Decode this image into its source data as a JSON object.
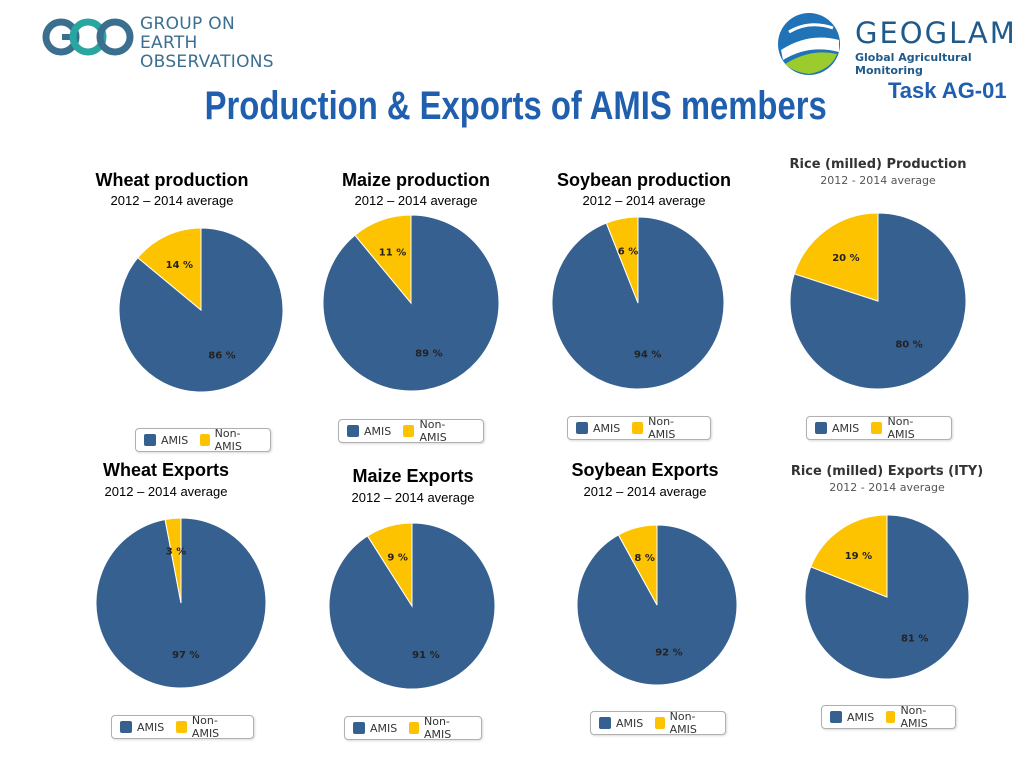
{
  "header": {
    "geo_logo_text_1": "GROUP ON",
    "geo_logo_text_2": "EARTH OBSERVATIONS",
    "geoglam_name": "GEOGLAM",
    "geoglam_subtitle": "Global Agricultural Monitoring",
    "task_label": "Task AG-01",
    "title": "Production & Exports of AMIS members"
  },
  "colors": {
    "amis": "#36608f",
    "non_amis": "#fdc300",
    "title_blue": "#1f5fae"
  },
  "legend": {
    "amis": "AMIS",
    "non_amis": "Non-AMIS"
  },
  "chart_data": [
    {
      "type": "pie",
      "title": "Wheat production",
      "subtitle": "2012 – 2014 average",
      "slices": [
        {
          "name": "AMIS",
          "value": 86,
          "label": "86 %"
        },
        {
          "name": "Non-AMIS",
          "value": 14,
          "label": "14 %"
        }
      ]
    },
    {
      "type": "pie",
      "title": "Maize production",
      "subtitle": "2012 – 2014 average",
      "slices": [
        {
          "name": "AMIS",
          "value": 89,
          "label": "89 %"
        },
        {
          "name": "Non-AMIS",
          "value": 11,
          "label": "11 %"
        }
      ]
    },
    {
      "type": "pie",
      "title": "Soybean production",
      "subtitle": "2012 – 2014 average",
      "slices": [
        {
          "name": "AMIS",
          "value": 94,
          "label": "94 %"
        },
        {
          "name": "Non-AMIS",
          "value": 6,
          "label": "6 %"
        }
      ]
    },
    {
      "type": "pie",
      "title": "Rice (milled) Production",
      "subtitle": "2012 - 2014 average",
      "slices": [
        {
          "name": "AMIS",
          "value": 80,
          "label": "80 %"
        },
        {
          "name": "Non-AMIS",
          "value": 20,
          "label": "20 %"
        }
      ]
    },
    {
      "type": "pie",
      "title": "Wheat Exports",
      "subtitle": "2012 – 2014 average",
      "slices": [
        {
          "name": "AMIS",
          "value": 97,
          "label": "97 %"
        },
        {
          "name": "Non-AMIS",
          "value": 3,
          "label": "3 %"
        }
      ]
    },
    {
      "type": "pie",
      "title": "Maize Exports",
      "subtitle": "2012 – 2014 average",
      "slices": [
        {
          "name": "AMIS",
          "value": 91,
          "label": "91 %"
        },
        {
          "name": "Non-AMIS",
          "value": 9,
          "label": "9 %"
        }
      ]
    },
    {
      "type": "pie",
      "title": "Soybean Exports",
      "subtitle": "2012 – 2014 average",
      "slices": [
        {
          "name": "AMIS",
          "value": 92,
          "label": "92 %"
        },
        {
          "name": "Non-AMIS",
          "value": 8,
          "label": "8 %"
        }
      ]
    },
    {
      "type": "pie",
      "title": "Rice (milled) Exports (ITY)",
      "subtitle": "2012 - 2014 average",
      "slices": [
        {
          "name": "AMIS",
          "value": 81,
          "label": "81 %"
        },
        {
          "name": "Non-AMIS",
          "value": 19,
          "label": "19 %"
        }
      ]
    }
  ]
}
